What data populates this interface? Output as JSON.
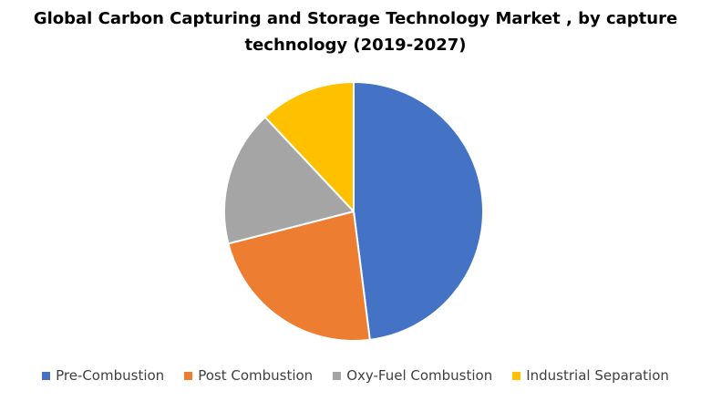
{
  "title_line1": "Global Carbon Capturing and Storage Technology Market , by capture",
  "title_line2": "technology (2019-2027)",
  "chart_data": {
    "type": "pie",
    "title": "Global Carbon Capturing and Storage Technology Market , by capture technology (2019-2027)",
    "categories": [
      "Pre-Combustion",
      "Post Combustion",
      "Oxy-Fuel Combustion",
      "Industrial Separation"
    ],
    "values": [
      48,
      23,
      17,
      12
    ],
    "colors": [
      "#4472C4",
      "#ED7D31",
      "#A5A5A5",
      "#FFC000"
    ],
    "legend_position": "bottom"
  }
}
